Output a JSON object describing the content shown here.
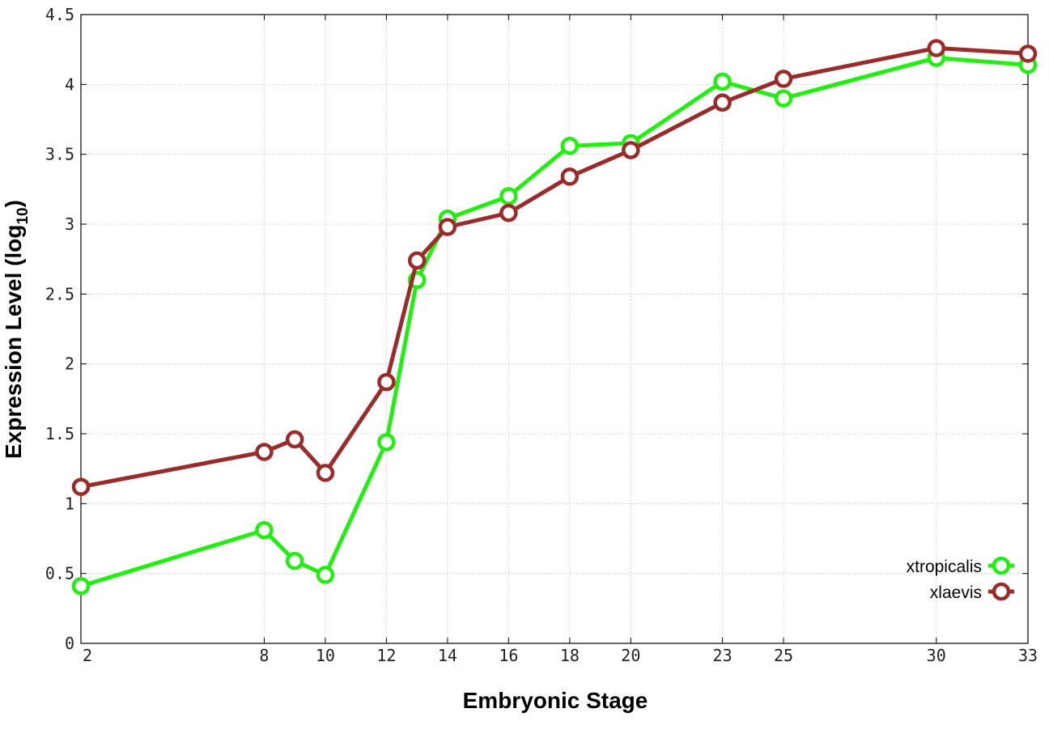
{
  "chart_data": {
    "type": "line",
    "xlabel": "Embryonic Stage",
    "ylabel_main": "Expression Level (log",
    "ylabel_sub": "10",
    "ylabel_close": ")",
    "xlim": [
      2,
      33
    ],
    "ylim": [
      0,
      4.5
    ],
    "x_ticks": [
      2,
      8,
      10,
      12,
      14,
      16,
      18,
      20,
      23,
      25,
      30,
      33
    ],
    "y_ticks": [
      {
        "value": 0,
        "label": "0"
      },
      {
        "value": 0.5,
        "label": "0.5"
      },
      {
        "value": 1,
        "label": "1"
      },
      {
        "value": 1.5,
        "label": "1.5"
      },
      {
        "value": 2,
        "label": "2"
      },
      {
        "value": 2.5,
        "label": "2.5"
      },
      {
        "value": 3,
        "label": "3"
      },
      {
        "value": 3.5,
        "label": "3.5"
      },
      {
        "value": 4,
        "label": "4"
      },
      {
        "value": 4.5,
        "label": "4.5"
      }
    ],
    "grid": true,
    "legend_position": "bottom-right",
    "series": [
      {
        "name": "xtropicalis",
        "color": "#22ee11",
        "points": [
          [
            2,
            0.41
          ],
          [
            8,
            0.81
          ],
          [
            9,
            0.59
          ],
          [
            10,
            0.49
          ],
          [
            12,
            1.44
          ],
          [
            13,
            2.6
          ],
          [
            14,
            3.04
          ],
          [
            16,
            3.2
          ],
          [
            18,
            3.56
          ],
          [
            20,
            3.58
          ],
          [
            23,
            4.02
          ],
          [
            25,
            3.9
          ],
          [
            30,
            4.19
          ],
          [
            33,
            4.14
          ]
        ]
      },
      {
        "name": "xlaevis",
        "color": "#992b2b",
        "points": [
          [
            2,
            1.12
          ],
          [
            8,
            1.37
          ],
          [
            9,
            1.46
          ],
          [
            10,
            1.22
          ],
          [
            12,
            1.87
          ],
          [
            13,
            2.74
          ],
          [
            14,
            2.98
          ],
          [
            16,
            3.08
          ],
          [
            18,
            3.34
          ],
          [
            20,
            3.53
          ],
          [
            23,
            3.87
          ],
          [
            25,
            4.04
          ],
          [
            30,
            4.26
          ],
          [
            33,
            4.22
          ]
        ]
      }
    ]
  }
}
